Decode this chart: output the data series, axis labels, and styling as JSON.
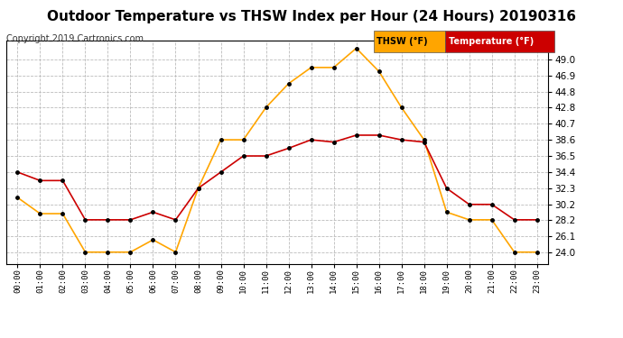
{
  "title": "Outdoor Temperature vs THSW Index per Hour (24 Hours) 20190316",
  "copyright": "Copyright 2019 Cartronics.com",
  "hours": [
    "00:00",
    "01:00",
    "02:00",
    "03:00",
    "04:00",
    "05:00",
    "06:00",
    "07:00",
    "08:00",
    "09:00",
    "10:00",
    "11:00",
    "12:00",
    "13:00",
    "14:00",
    "15:00",
    "16:00",
    "17:00",
    "18:00",
    "19:00",
    "20:00",
    "21:00",
    "22:00",
    "23:00"
  ],
  "thsw": [
    31.1,
    29.0,
    29.0,
    24.0,
    24.0,
    24.0,
    25.6,
    24.0,
    32.3,
    38.6,
    38.6,
    42.8,
    45.9,
    48.0,
    48.0,
    50.5,
    47.5,
    42.8,
    38.6,
    29.2,
    28.2,
    28.2,
    24.0,
    24.0
  ],
  "temperature": [
    34.4,
    33.3,
    33.3,
    28.2,
    28.2,
    28.2,
    29.2,
    28.2,
    32.3,
    34.4,
    36.5,
    36.5,
    37.5,
    38.6,
    38.3,
    39.2,
    39.2,
    38.6,
    38.3,
    32.3,
    30.2,
    30.2,
    28.2,
    28.2
  ],
  "thsw_color": "#FFA500",
  "temp_color": "#CC0000",
  "marker_color": "#000000",
  "ylim_min": 22.5,
  "ylim_max": 51.5,
  "yticks": [
    24.0,
    26.1,
    28.2,
    30.2,
    32.3,
    34.4,
    36.5,
    38.6,
    40.7,
    42.8,
    44.8,
    46.9,
    49.0
  ],
  "background_color": "#ffffff",
  "grid_color": "#bbbbbb",
  "legend_thsw_label": "THSW (°F)",
  "legend_temp_label": "Temperature (°F)",
  "legend_thsw_bg": "#FFA500",
  "legend_temp_bg": "#CC0000",
  "title_fontsize": 11,
  "copyright_fontsize": 7
}
